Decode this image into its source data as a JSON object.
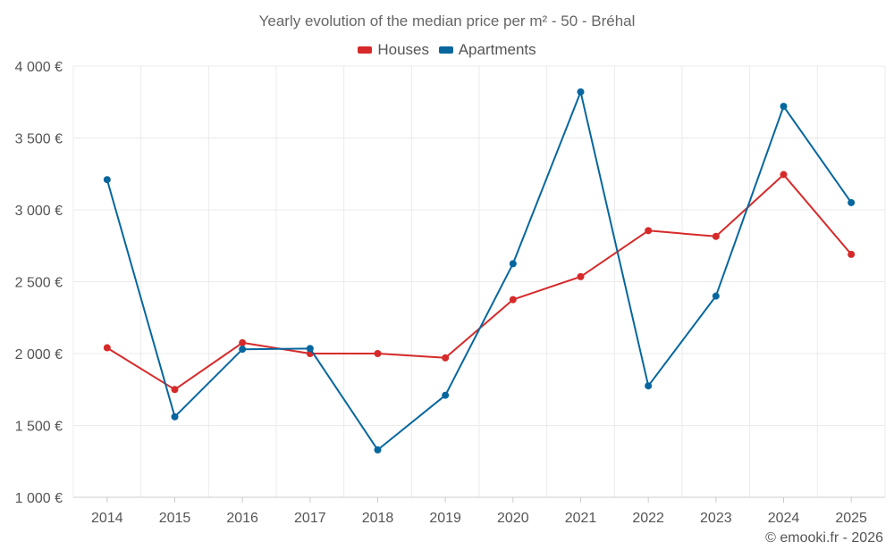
{
  "chart_data": {
    "type": "line",
    "title": "Yearly evolution of the median price per m² - 50 - Bréhal",
    "categories": [
      "2014",
      "2015",
      "2016",
      "2017",
      "2018",
      "2019",
      "2020",
      "2021",
      "2022",
      "2023",
      "2024",
      "2025"
    ],
    "series": [
      {
        "name": "Houses",
        "color": "#d62a2a",
        "values": [
          2040,
          1750,
          2075,
          2000,
          2000,
          1970,
          2375,
          2535,
          2855,
          2815,
          3245,
          2690
        ]
      },
      {
        "name": "Apartments",
        "color": "#06679e",
        "values": [
          3210,
          1560,
          2030,
          2035,
          1330,
          1710,
          2625,
          3820,
          1775,
          2400,
          3720,
          3050
        ]
      }
    ],
    "ylim": [
      1000,
      4000
    ],
    "yticks": [
      1000,
      1500,
      2000,
      2500,
      3000,
      3500,
      4000
    ],
    "ytick_labels": [
      "1 000 €",
      "1 500 €",
      "2 000 €",
      "2 500 €",
      "3 000 €",
      "3 500 €",
      "4 000 €"
    ],
    "xlabel": "",
    "ylabel": "",
    "grid": true,
    "legend_position": "top-center"
  },
  "credit": "© emooki.fr - 2026"
}
